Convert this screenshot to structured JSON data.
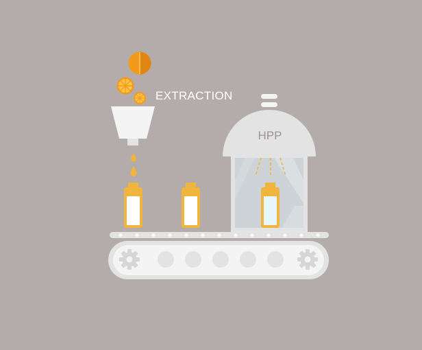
{
  "labels": {
    "extraction": "EXTRACTION",
    "hpp": "HPP"
  },
  "colors": {
    "background": "#b4acaa",
    "machine_light": "#e3e3e3",
    "machine_white": "#f4f4f4",
    "orange": "#f29b1a",
    "orange_dark": "#e0850e",
    "juice_yellow": "#f0b53c",
    "bottle_fill": "#ffffff",
    "chamber_glass": "#cdd3d6",
    "hpp_bottle_fill": "#e6f6fb",
    "gear": "#d6d6d6"
  },
  "icons": {
    "fruit": "orange-icon",
    "gear": "gear-icon",
    "bottle": "bottle-icon",
    "funnel": "funnel-icon"
  }
}
